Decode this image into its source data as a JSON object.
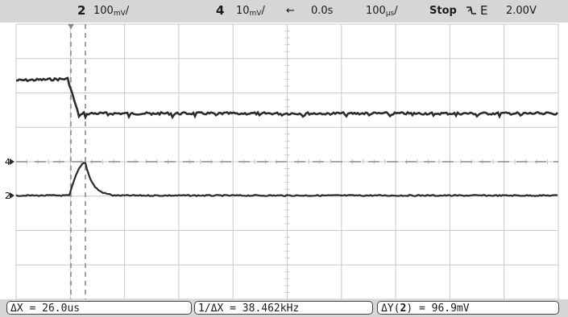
{
  "status_bar": {
    "channel2_label": "2",
    "channel2_scale": "100",
    "channel2_unit": "mV",
    "channel4_label": "4",
    "channel4_scale": "10",
    "channel4_unit": "mV",
    "delay_arrow": "←",
    "delay": "0.0s",
    "timebase": "100",
    "timebase_unit": "µs",
    "run_state": "Stop",
    "trigger_source": "E",
    "trigger_level": "2.00V"
  },
  "measurements": {
    "delta_x": "ΔX = 26.0us",
    "inverse_delta_x": "1/ΔX = 38.462kHz",
    "delta_y_prefix": "ΔY(",
    "delta_y_channel": "2",
    "delta_y_suffix": ") = 96.9mV"
  },
  "channel_markers": {
    "ch4": "4",
    "ch2": "2"
  },
  "colors": {
    "background": "#ffffff",
    "bar": "#d6d6d6",
    "grid": "#c8c8c8",
    "trace": "#2b2b2b",
    "cursor": "#8a8a8a"
  }
}
